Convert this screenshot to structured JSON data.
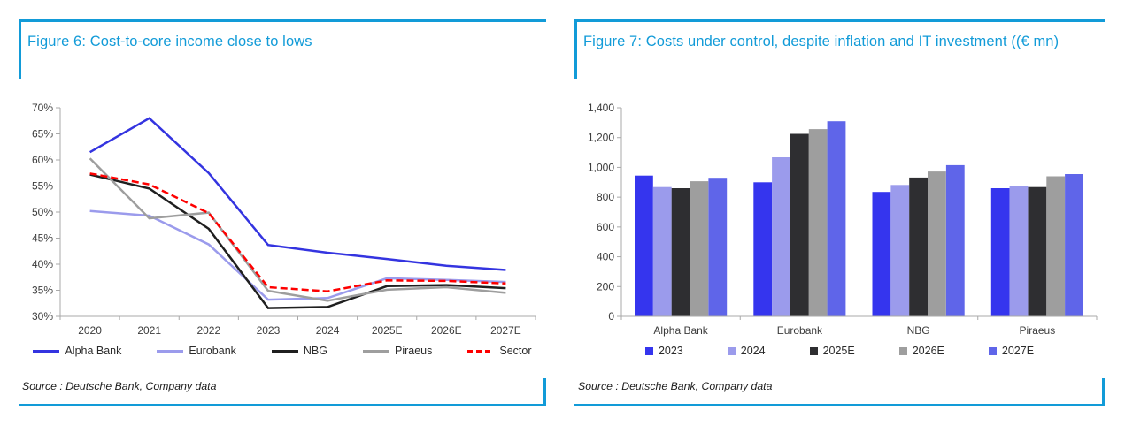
{
  "accent_color": "#129BD8",
  "axis_color": "#A9A9A9",
  "label_color": "#3B3B3B",
  "figures": [
    {
      "title": "Figure 6: Cost-to-core income close to lows",
      "source": "Source : Deutsche Bank, Company data"
    },
    {
      "title": "Figure 7: Costs under control, despite inflation and IT investment ((€ mn)",
      "source": "Source : Deutsche Bank, Company data"
    }
  ],
  "chart_data": [
    {
      "type": "line",
      "title": "Figure 6: Cost-to-core income close to lows",
      "categories": [
        "2020",
        "2021",
        "2022",
        "2023",
        "2024",
        "2025E",
        "2026E",
        "2027E"
      ],
      "series": [
        {
          "name": "Alpha Bank",
          "color": "#3434E0",
          "dash": false,
          "values": [
            61.5,
            68.0,
            57.5,
            43.7,
            42.2,
            41.0,
            39.7,
            38.9
          ]
        },
        {
          "name": "Eurobank",
          "color": "#9B9BEC",
          "dash": false,
          "values": [
            50.2,
            49.3,
            43.8,
            33.2,
            33.5,
            37.3,
            37.0,
            36.6
          ]
        },
        {
          "name": "NBG",
          "color": "#1F1F1F",
          "dash": false,
          "values": [
            57.2,
            54.5,
            46.8,
            31.6,
            31.8,
            35.8,
            36.0,
            35.4
          ]
        },
        {
          "name": "Piraeus",
          "color": "#9E9E9E",
          "dash": false,
          "values": [
            60.3,
            48.8,
            49.9,
            34.9,
            33.0,
            35.1,
            35.6,
            34.5
          ]
        },
        {
          "name": "Sector",
          "color": "#FE0000",
          "dash": true,
          "values": [
            57.4,
            55.3,
            49.8,
            35.6,
            34.8,
            36.9,
            36.8,
            36.3
          ]
        }
      ],
      "xlabel": "",
      "ylabel": "",
      "ylim": [
        30,
        70
      ],
      "ytick_step": 5,
      "ytick_format": "percent",
      "grid": false,
      "legend_position": "bottom"
    },
    {
      "type": "bar",
      "title": "Figure 7: Costs under control, despite inflation and IT investment ((€ mn)",
      "categories": [
        "Alpha Bank",
        "Eurobank",
        "NBG",
        "Piraeus"
      ],
      "series": [
        {
          "name": "2023",
          "color": "#3535EE",
          "values": [
            945,
            900,
            835,
            860
          ]
        },
        {
          "name": "2024",
          "color": "#9B9BEC",
          "values": [
            868,
            1068,
            882,
            872
          ]
        },
        {
          "name": "2025E",
          "color": "#2E2E31",
          "values": [
            860,
            1225,
            932,
            868
          ]
        },
        {
          "name": "2026E",
          "color": "#9E9E9E",
          "values": [
            907,
            1257,
            972,
            940
          ]
        },
        {
          "name": "2027E",
          "color": "#5F65E9",
          "values": [
            930,
            1310,
            1015,
            955
          ]
        }
      ],
      "xlabel": "",
      "ylabel": "",
      "ylim": [
        0,
        1400
      ],
      "ytick_step": 200,
      "ytick_format": "thousands",
      "grid": false,
      "legend_position": "bottom"
    }
  ]
}
